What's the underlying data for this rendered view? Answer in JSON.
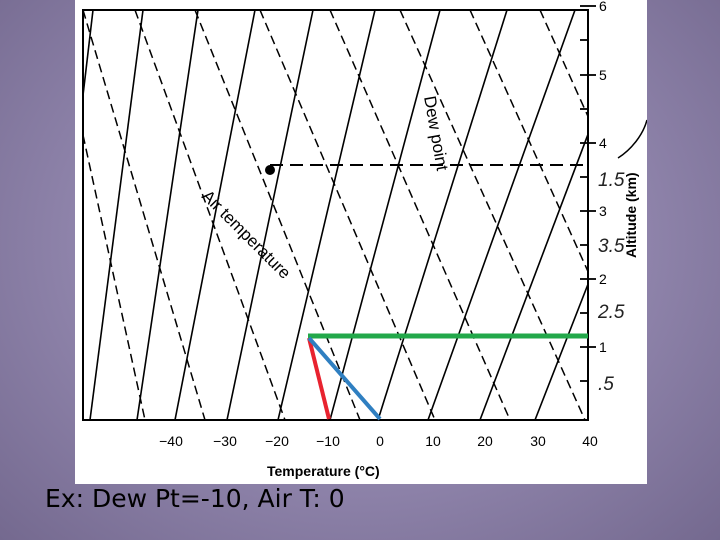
{
  "caption": "Ex: Dew Pt=-10, Air T: 0",
  "diagram": {
    "x_axis_title": "Temperature (°C)",
    "y_axis_title": "Altitude (km)",
    "x_ticks": [
      "−40",
      "−30",
      "−20",
      "−10",
      "0",
      "10",
      "20",
      "30",
      "40"
    ],
    "y_ticks": [
      "1",
      "2",
      "3",
      "4",
      "5",
      "6"
    ],
    "handwritten_halves": [
      ".5",
      "1.5",
      "2.5",
      "3.5"
    ],
    "label_dew_point": "Dew point",
    "label_air_temperature": "Air temperature",
    "colors": {
      "green_line": "#22a84a",
      "red_line": "#e8232f",
      "blue_line": "#2f7fc1"
    }
  }
}
